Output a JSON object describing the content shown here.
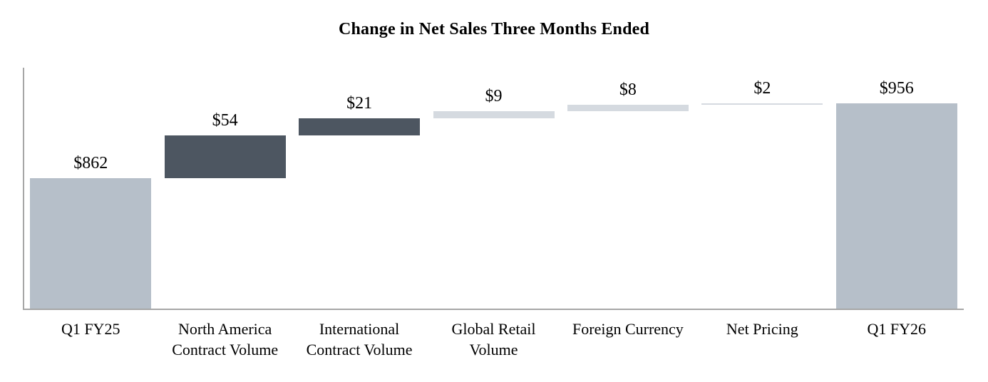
{
  "chart_data": {
    "type": "bar",
    "subtype": "waterfall",
    "title": "Change in Net Sales Three Months Ended",
    "categories": [
      "Q1 FY25",
      "North America Contract Volume",
      "International Contract Volume",
      "Global Retail Volume",
      "Foreign Currency",
      "Net Pricing",
      "Q1 FY26"
    ],
    "category_lines": [
      [
        "Q1 FY25"
      ],
      [
        "North America",
        "Contract Volume"
      ],
      [
        "International",
        "Contract Volume"
      ],
      [
        "Global Retail",
        "Volume"
      ],
      [
        "Foreign Currency"
      ],
      [
        "Net Pricing"
      ],
      [
        "Q1 FY26"
      ]
    ],
    "bars": [
      {
        "category": "Q1 FY25",
        "data_label": "$862",
        "value": 862,
        "start": 700,
        "end": 862,
        "role": "total",
        "color": "#b6bfc9"
      },
      {
        "category": "North America Contract Volume",
        "data_label": "$54",
        "value": 54,
        "start": 862,
        "end": 916,
        "role": "increase",
        "color": "#4d5661"
      },
      {
        "category": "International Contract Volume",
        "data_label": "$21",
        "value": 21,
        "start": 916,
        "end": 937,
        "role": "increase",
        "color": "#4d5661"
      },
      {
        "category": "Global Retail Volume",
        "data_label": "$9",
        "value": 9,
        "start": 937,
        "end": 946,
        "role": "increase",
        "color": "#d5dae0"
      },
      {
        "category": "Foreign Currency",
        "data_label": "$8",
        "value": 8,
        "start": 946,
        "end": 954,
        "role": "increase",
        "color": "#d5dae0"
      },
      {
        "category": "Net Pricing",
        "data_label": "$2",
        "value": 2,
        "start": 954,
        "end": 956,
        "role": "increase",
        "color": "#d5dae0"
      },
      {
        "category": "Q1 FY26",
        "data_label": "$956",
        "value": 956,
        "start": 700,
        "end": 956,
        "role": "total",
        "color": "#b6bfc9"
      }
    ],
    "axis": {
      "y_min": 700,
      "y_max": 1000,
      "gridlines": false,
      "tick_labels_visible": false
    },
    "legend": {
      "visible": false
    },
    "colors": {
      "total_bar": "#b6bfc9",
      "dark_increase_bar": "#4d5661",
      "light_increase_bar": "#d5dae0",
      "axis_line": "#a6a6a6",
      "text": "#000000",
      "background": "#ffffff"
    }
  }
}
